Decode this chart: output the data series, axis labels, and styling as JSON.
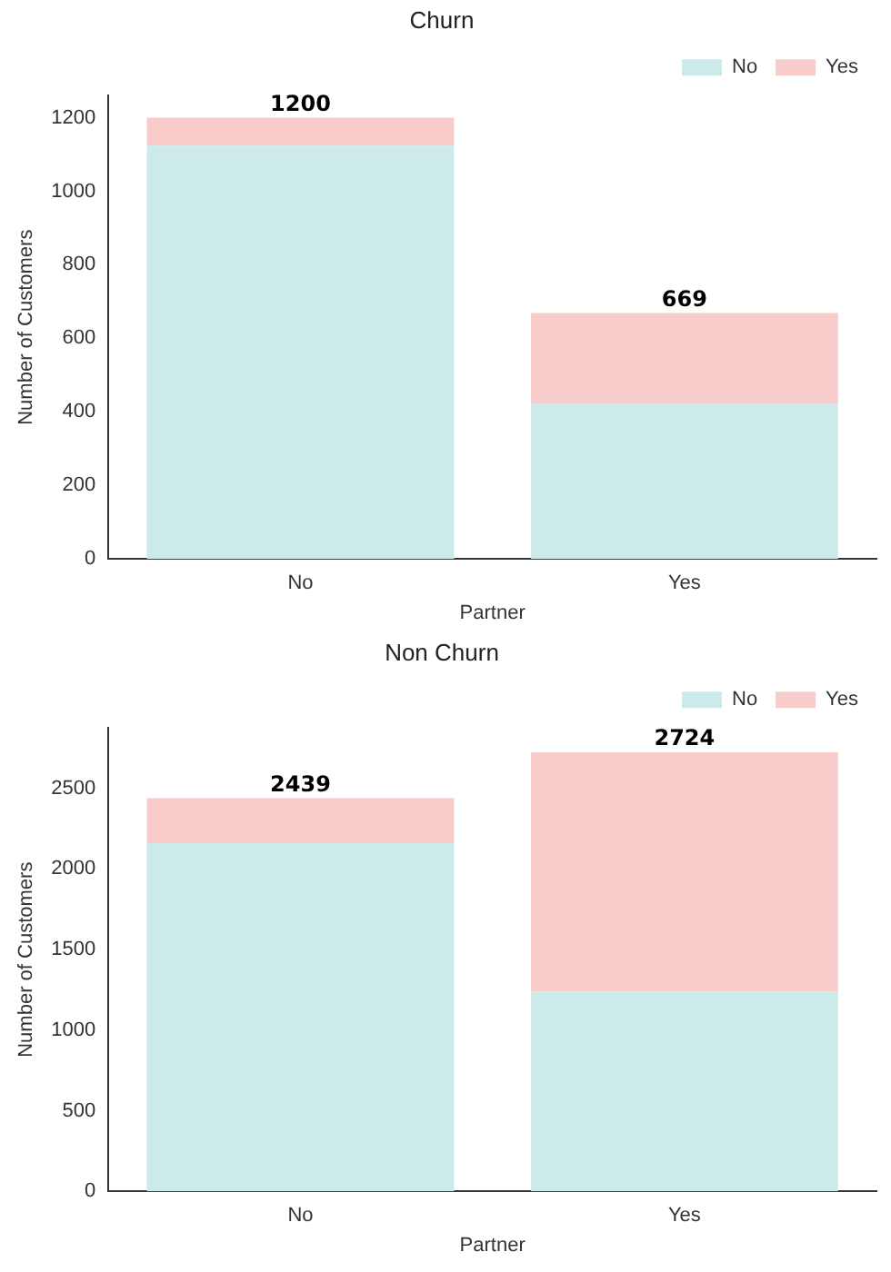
{
  "chart_data": [
    {
      "type": "bar",
      "title": "Churn",
      "xlabel": "Partner",
      "ylabel": "Number of Customers",
      "categories": [
        "No",
        "Yes"
      ],
      "stacked": true,
      "legend": "top right",
      "grid": false,
      "ylim": [
        0,
        1260
      ],
      "yticks": [
        0,
        200,
        400,
        600,
        800,
        1000,
        1200
      ],
      "totals": [
        "1200",
        "669"
      ],
      "series": [
        {
          "name": "No",
          "color": "#cdeaea",
          "values": [
            1124,
            422
          ]
        },
        {
          "name": "Yes",
          "color": "#f9cccc",
          "values": [
            76,
            247
          ]
        }
      ]
    },
    {
      "type": "bar",
      "title": "Non Churn",
      "xlabel": "Partner",
      "ylabel": "Number of Customers",
      "categories": [
        "No",
        "Yes"
      ],
      "stacked": true,
      "legend": "top right",
      "grid": false,
      "ylim": [
        0,
        2875
      ],
      "yticks": [
        0,
        500,
        1000,
        1500,
        2000,
        2500
      ],
      "totals": [
        "2439",
        "2724"
      ],
      "series": [
        {
          "name": "No",
          "color": "#cdeaea",
          "values": [
            2160,
            1240
          ]
        },
        {
          "name": "Yes",
          "color": "#f9cccc",
          "values": [
            279,
            1484
          ]
        }
      ]
    }
  ]
}
